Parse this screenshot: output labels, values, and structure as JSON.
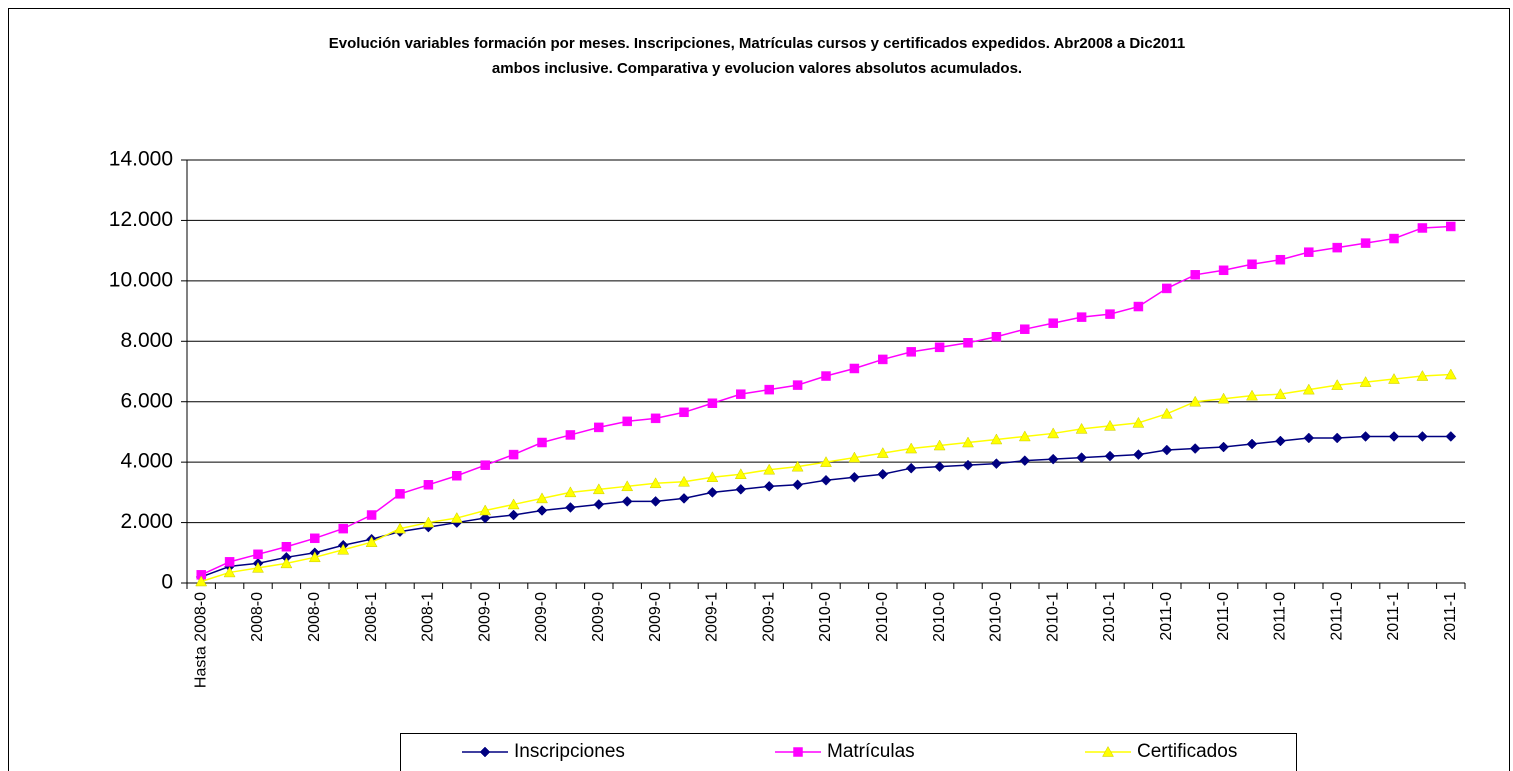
{
  "chart_data": {
    "type": "line",
    "title": [
      "Evolución variables formación por meses.  Inscripciones, Matrículas cursos y certificados expedidos. Abr2008 a  Dic2011",
      "ambos inclusive. Comparativa y evolucion valores absolutos acumulados."
    ],
    "categories": [
      "Hasta 2008-0",
      null,
      "2008-0",
      null,
      "2008-0",
      null,
      "2008-1",
      null,
      "2008-1",
      null,
      "2009-0",
      null,
      "2009-0",
      null,
      "2009-0",
      null,
      "2009-0",
      null,
      "2009-1",
      null,
      "2009-1",
      null,
      "2010-0",
      null,
      "2010-0",
      null,
      "2010-0",
      null,
      "2010-0",
      null,
      "2010-1",
      null,
      "2010-1",
      null,
      "2011-0",
      null,
      "2011-0",
      null,
      "2011-0",
      null,
      "2011-0",
      null,
      "2011-1",
      null,
      "2011-1"
    ],
    "series": [
      {
        "name": "Inscripciones",
        "color": "#000080",
        "marker": "diamond",
        "values": [
          200,
          550,
          650,
          850,
          1000,
          1250,
          1450,
          1700,
          1850,
          2000,
          2150,
          2250,
          2400,
          2500,
          2600,
          2700,
          2700,
          2800,
          3000,
          3100,
          3200,
          3250,
          3400,
          3500,
          3600,
          3800,
          3850,
          3900,
          3950,
          4050,
          4100,
          4150,
          4200,
          4250,
          4400,
          4450,
          4500,
          4600,
          4700,
          4800,
          4800,
          4850,
          4850,
          4850,
          4850
        ]
      },
      {
        "name": "Matrículas",
        "color": "#FF00FF",
        "marker": "square",
        "values": [
          270,
          700,
          950,
          1200,
          1480,
          1800,
          2250,
          2950,
          3250,
          3550,
          3900,
          4250,
          4650,
          4900,
          5150,
          5350,
          5450,
          5650,
          5950,
          6250,
          6400,
          6550,
          6850,
          7100,
          7400,
          7650,
          7800,
          7950,
          8150,
          8400,
          8600,
          8800,
          8900,
          9150,
          9750,
          10200,
          10350,
          10550,
          10700,
          10950,
          11100,
          11250,
          11400,
          11750,
          11800
        ]
      },
      {
        "name": "Certificados",
        "color": "#FFFF00",
        "marker": "triangle",
        "values": [
          50,
          350,
          500,
          650,
          850,
          1100,
          1350,
          1800,
          2000,
          2150,
          2400,
          2600,
          2800,
          3000,
          3100,
          3200,
          3300,
          3350,
          3500,
          3600,
          3750,
          3850,
          4000,
          4150,
          4300,
          4450,
          4550,
          4650,
          4750,
          4850,
          4950,
          5100,
          5200,
          5300,
          5600,
          6000,
          6100,
          6200,
          6250,
          6400,
          6550,
          6650,
          6750,
          6850,
          6900
        ]
      }
    ],
    "ylim": [
      0,
      14000
    ],
    "yticks": [
      0,
      {
        "value": 2000,
        "label": "2.000"
      },
      {
        "value": 4000,
        "label": "4.000"
      },
      {
        "value": 6000,
        "label": "6.000"
      },
      {
        "value": 8000,
        "label": "8.000"
      },
      {
        "value": 10000,
        "label": "10.000"
      },
      {
        "value": 12000,
        "label": "12.000"
      },
      {
        "value": 14000,
        "label": "14.000"
      }
    ],
    "grid": true,
    "legend": "bottom"
  }
}
